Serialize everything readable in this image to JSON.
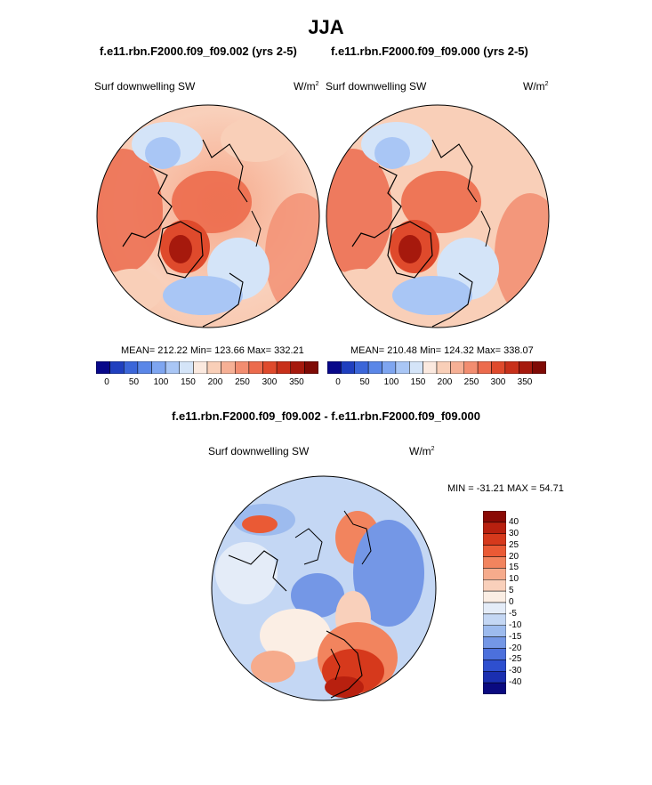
{
  "page_title": "JJA",
  "panels": [
    {
      "case_title": "f.e11.rbn.F2000.f09_f09.002 (yrs 2-5)",
      "variable": "Surf downwelling SW",
      "units": "W/m",
      "units_exp": "2",
      "stats": "MEAN= 212.22  Min= 123.66  Max= 332.21"
    },
    {
      "case_title": "f.e11.rbn.F2000.f09_f09.000 (yrs 2-5)",
      "variable": "Surf downwelling SW",
      "units": "W/m",
      "units_exp": "2",
      "stats": "MEAN= 210.48  Min= 124.32  Max= 338.07"
    }
  ],
  "abs_colorbar": {
    "colors": [
      "#08088a",
      "#1f3fbf",
      "#3b66d9",
      "#5a87e8",
      "#7ea5f0",
      "#a9c6f5",
      "#d4e4f8",
      "#fbe9df",
      "#f9cfb8",
      "#f6b095",
      "#f28d70",
      "#ec6b4d",
      "#df4a2c",
      "#c8301a",
      "#a6190d",
      "#7f0a05"
    ],
    "ticks": [
      "0",
      "50",
      "100",
      "150",
      "200",
      "250",
      "300",
      "350"
    ]
  },
  "diff": {
    "title": "f.e11.rbn.F2000.f09_f09.002 - f.e11.rbn.F2000.f09_f09.000",
    "variable": "Surf downwelling SW",
    "units": "W/m",
    "units_exp": "2",
    "minmax": "MIN = -31.21 MAX =  54.71",
    "colorbar": {
      "colors": [
        "#8a0a05",
        "#b8200f",
        "#d6391c",
        "#ea5a35",
        "#f2845e",
        "#f6ab8c",
        "#f9d0bb",
        "#fbeee4",
        "#e4ecf8",
        "#c4d7f4",
        "#9dbbee",
        "#7497e6",
        "#4c70dc",
        "#2e4fcf",
        "#1a2fb0",
        "#0a0a80"
      ],
      "ticks": [
        "40",
        "30",
        "25",
        "20",
        "15",
        "10",
        "5",
        "0",
        "-5",
        "-10",
        "-15",
        "-20",
        "-25",
        "-30",
        "-40"
      ]
    }
  }
}
